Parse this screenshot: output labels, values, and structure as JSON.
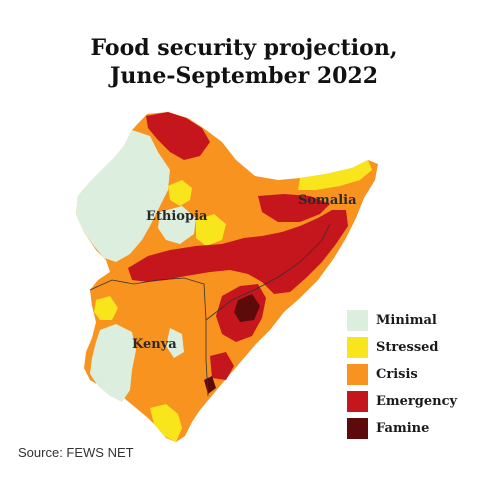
{
  "title": {
    "line1": "Food security projection,",
    "line2": "June-September 2022"
  },
  "labels": {
    "ethiopia": "Ethiopia",
    "somalia": "Somalia",
    "kenya": "Kenya"
  },
  "legend": [
    {
      "label": "Minimal",
      "color": "#dceedd"
    },
    {
      "label": "Stressed",
      "color": "#f8e51c"
    },
    {
      "label": "Crisis",
      "color": "#f7931e"
    },
    {
      "label": "Emergency",
      "color": "#c4161c"
    },
    {
      "label": "Famine",
      "color": "#5c0a0a"
    }
  ],
  "source": "Source: FEWS NET"
}
